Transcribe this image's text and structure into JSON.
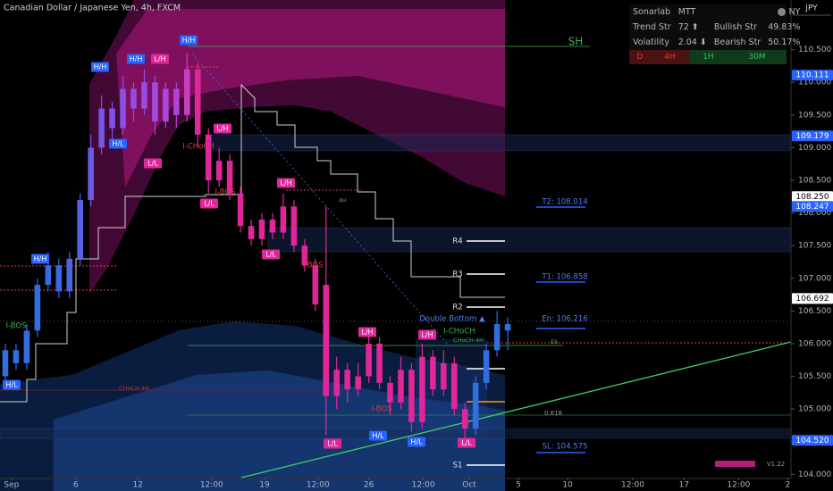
{
  "chart_data": {
    "type": "candlestick",
    "title": "Canadian Dollar / Japanese Yen, 4h, FXCM",
    "currency": "JPY",
    "xlim": [
      -0.5,
      73.5
    ],
    "ylim": [
      103.95,
      111.26
    ],
    "xticks": [
      {
        "value": 0.58,
        "label": "Sep"
      },
      {
        "value": 6.6,
        "label": "6"
      },
      {
        "value": 12.4,
        "label": "12"
      },
      {
        "value": 19.3,
        "label": "12:00"
      },
      {
        "value": 24.25,
        "label": "19"
      },
      {
        "value": 29.25,
        "label": "12:00"
      },
      {
        "value": 34,
        "label": "26"
      },
      {
        "value": 39.1,
        "label": "12:00"
      },
      {
        "value": 43.4,
        "label": "Oct"
      },
      {
        "value": 48,
        "label": "5"
      },
      {
        "value": 52.6,
        "label": "10"
      },
      {
        "value": 58.7,
        "label": "12:00"
      },
      {
        "value": 63.5,
        "label": "17"
      },
      {
        "value": 68.6,
        "label": "12:00"
      },
      {
        "value": 73.2,
        "label": "2"
      }
    ],
    "yticks": [
      {
        "value": 104,
        "label": "104.000"
      },
      {
        "value": 104.5,
        "label": "104.500"
      },
      {
        "value": 105,
        "label": "105.000"
      },
      {
        "value": 105.5,
        "label": "105.500"
      },
      {
        "value": 106,
        "label": "106.000"
      },
      {
        "value": 106.5,
        "label": "106.500"
      },
      {
        "value": 107,
        "label": "107.000"
      },
      {
        "value": 107.5,
        "label": "107.500"
      },
      {
        "value": 108,
        "label": "108.000"
      },
      {
        "value": 108.5,
        "label": "108.500"
      },
      {
        "value": 109,
        "label": "109.000"
      },
      {
        "value": 109.5,
        "label": "109.500"
      },
      {
        "value": 110,
        "label": "110.000"
      },
      {
        "value": 110.5,
        "label": "110.500"
      }
    ],
    "price_tags": [
      {
        "value": 110.111,
        "label": "110.111",
        "color": "#2962ff"
      },
      {
        "value": 109.179,
        "label": "109.179",
        "color": "#2962ff"
      },
      {
        "value": 108.25,
        "label": "108.250",
        "color": "#ffffff"
      },
      {
        "value": 108.247,
        "label": "108.247",
        "color": "#2962ff"
      },
      {
        "value": 106.692,
        "label": "106.692",
        "color": "#ffffff"
      },
      {
        "value": 104.52,
        "label": "104.520",
        "color": "#2962ff"
      }
    ],
    "candles": [
      {
        "o": 105.5,
        "h": 106.0,
        "l": 105.4,
        "c": 105.9,
        "color": "#2f6fde"
      },
      {
        "o": 105.9,
        "h": 106.0,
        "l": 105.6,
        "c": 105.7,
        "color": "#2f6fde"
      },
      {
        "o": 105.7,
        "h": 106.3,
        "l": 105.6,
        "c": 106.2,
        "color": "#2f6fde"
      },
      {
        "o": 106.2,
        "h": 107.0,
        "l": 106.1,
        "c": 106.9,
        "color": "#2f6fde"
      },
      {
        "o": 106.9,
        "h": 107.4,
        "l": 106.8,
        "c": 107.2,
        "color": "#3a6ae0"
      },
      {
        "o": 107.2,
        "h": 107.3,
        "l": 106.7,
        "c": 106.8,
        "color": "#3a6ae0"
      },
      {
        "o": 106.8,
        "h": 107.4,
        "l": 106.7,
        "c": 107.3,
        "color": "#4a64e2"
      },
      {
        "o": 107.3,
        "h": 108.3,
        "l": 107.2,
        "c": 108.2,
        "color": "#5a5fe4"
      },
      {
        "o": 108.2,
        "h": 109.2,
        "l": 108.1,
        "c": 109.0,
        "color": "#6a5ae6"
      },
      {
        "o": 109.0,
        "h": 109.8,
        "l": 108.9,
        "c": 109.6,
        "color": "#7656e6"
      },
      {
        "o": 109.6,
        "h": 109.7,
        "l": 109.1,
        "c": 109.3,
        "color": "#8052e6"
      },
      {
        "o": 109.3,
        "h": 110.1,
        "l": 109.2,
        "c": 109.9,
        "color": "#8a50e4"
      },
      {
        "o": 109.9,
        "h": 110.0,
        "l": 109.4,
        "c": 109.6,
        "color": "#924ee2"
      },
      {
        "o": 109.6,
        "h": 110.2,
        "l": 109.5,
        "c": 110.0,
        "color": "#994ce0"
      },
      {
        "o": 110.0,
        "h": 110.1,
        "l": 109.2,
        "c": 109.4,
        "color": "#a04ade"
      },
      {
        "o": 109.4,
        "h": 110.0,
        "l": 109.3,
        "c": 109.9,
        "color": "#a848dc"
      },
      {
        "o": 109.9,
        "h": 110.0,
        "l": 109.3,
        "c": 109.5,
        "color": "#b044d6"
      },
      {
        "o": 109.5,
        "h": 110.45,
        "l": 109.4,
        "c": 110.2,
        "color": "#c83ec0"
      },
      {
        "o": 110.2,
        "h": 110.3,
        "l": 109.0,
        "c": 109.2,
        "color": "#e0279a"
      },
      {
        "o": 109.2,
        "h": 109.3,
        "l": 108.3,
        "c": 108.5,
        "color": "#e0279a"
      },
      {
        "o": 108.5,
        "h": 109.0,
        "l": 108.4,
        "c": 108.8,
        "color": "#e0279a"
      },
      {
        "o": 108.8,
        "h": 108.9,
        "l": 108.2,
        "c": 108.3,
        "color": "#e0279a"
      },
      {
        "o": 108.3,
        "h": 108.4,
        "l": 107.7,
        "c": 107.8,
        "color": "#e0279a"
      },
      {
        "o": 107.8,
        "h": 107.9,
        "l": 107.5,
        "c": 107.6,
        "color": "#e0279a"
      },
      {
        "o": 107.6,
        "h": 108.0,
        "l": 107.5,
        "c": 107.9,
        "color": "#e0279a"
      },
      {
        "o": 107.9,
        "h": 108.0,
        "l": 107.6,
        "c": 107.7,
        "color": "#e0279a"
      },
      {
        "o": 107.7,
        "h": 108.3,
        "l": 107.6,
        "c": 108.1,
        "color": "#e0279a"
      },
      {
        "o": 108.1,
        "h": 108.2,
        "l": 107.4,
        "c": 107.5,
        "color": "#e0279a"
      },
      {
        "o": 107.5,
        "h": 107.6,
        "l": 107.1,
        "c": 107.2,
        "color": "#e0279a"
      },
      {
        "o": 107.2,
        "h": 107.3,
        "l": 106.5,
        "c": 106.6,
        "color": "#e0279a"
      },
      {
        "o": 106.9,
        "h": 108.1,
        "l": 104.6,
        "c": 105.2,
        "color": "#e0279a"
      },
      {
        "o": 105.2,
        "h": 105.8,
        "l": 105.0,
        "c": 105.6,
        "color": "#e0279a"
      },
      {
        "o": 105.6,
        "h": 105.7,
        "l": 105.1,
        "c": 105.3,
        "color": "#e0279a"
      },
      {
        "o": 105.3,
        "h": 105.7,
        "l": 105.2,
        "c": 105.5,
        "color": "#e0279a"
      },
      {
        "o": 105.5,
        "h": 106.2,
        "l": 105.4,
        "c": 106.0,
        "color": "#e0279a"
      },
      {
        "o": 106.0,
        "h": 106.1,
        "l": 105.3,
        "c": 105.4,
        "color": "#e0279a"
      },
      {
        "o": 105.4,
        "h": 105.5,
        "l": 104.9,
        "c": 105.1,
        "color": "#e0279a"
      },
      {
        "o": 105.1,
        "h": 105.8,
        "l": 105.0,
        "c": 105.6,
        "color": "#e0279a"
      },
      {
        "o": 105.6,
        "h": 105.7,
        "l": 104.65,
        "c": 104.8,
        "color": "#e0279a"
      },
      {
        "o": 104.8,
        "h": 106.0,
        "l": 104.7,
        "c": 105.8,
        "color": "#e0279a"
      },
      {
        "o": 105.8,
        "h": 105.9,
        "l": 105.2,
        "c": 105.3,
        "color": "#e0279a"
      },
      {
        "o": 105.3,
        "h": 105.9,
        "l": 105.2,
        "c": 105.7,
        "color": "#e0279a"
      },
      {
        "o": 105.7,
        "h": 105.8,
        "l": 104.9,
        "c": 105.0,
        "color": "#e0279a"
      },
      {
        "o": 105.0,
        "h": 105.1,
        "l": 104.55,
        "c": 104.7,
        "color": "#e0279a"
      },
      {
        "o": 104.7,
        "h": 105.5,
        "l": 104.6,
        "c": 105.4,
        "color": "#2f6fde"
      },
      {
        "o": 105.4,
        "h": 106.0,
        "l": 105.3,
        "c": 105.9,
        "color": "#2f6fde"
      },
      {
        "o": 105.9,
        "h": 106.5,
        "l": 105.8,
        "c": 106.3,
        "color": "#2f6fde"
      },
      {
        "o": 106.3,
        "h": 106.4,
        "l": 105.9,
        "c": 106.2,
        "color": "#2f6fde"
      }
    ],
    "annotations": [
      {
        "text": "H/H",
        "style": "blue-box"
      },
      {
        "text": "H/H",
        "style": "blue-box"
      },
      {
        "text": "L/H",
        "style": "pink-box"
      },
      {
        "text": "H/H",
        "style": "blue-box"
      },
      {
        "text": "H/L",
        "style": "blue-box"
      },
      {
        "text": "L/L",
        "style": "pink-box"
      },
      {
        "text": "L/H",
        "style": "pink-box"
      },
      {
        "text": "I-CHoCH",
        "style": "red"
      },
      {
        "text": "I-BOS",
        "style": "red"
      },
      {
        "text": "L/H",
        "style": "pink-box"
      },
      {
        "text": "L/L",
        "style": "pink-box"
      },
      {
        "text": "L/L",
        "style": "pink-box"
      },
      {
        "text": "H/H",
        "style": "blue-box"
      },
      {
        "text": "I-BOS",
        "style": "green"
      },
      {
        "text": "H/L",
        "style": "blue-box"
      },
      {
        "text": "I-BOS",
        "style": "red"
      },
      {
        "text": "L/H",
        "style": "pink-box"
      },
      {
        "text": "L/H",
        "style": "pink-box"
      },
      {
        "text": "I-BOS",
        "style": "red"
      },
      {
        "text": "L/L",
        "style": "pink-box"
      },
      {
        "text": "H/L",
        "style": "blue-box"
      },
      {
        "text": "H/L",
        "style": "blue-box"
      },
      {
        "text": "L/L",
        "style": "pink-box"
      },
      {
        "text": "I-CHoCH",
        "style": "green"
      },
      {
        "text": "CHoCH 4H",
        "style": "green-small"
      },
      {
        "text": "Double Bottom ▲",
        "style": "blue"
      },
      {
        "text": "SH",
        "style": "green-big"
      },
      {
        "text": "R4",
        "style": "white"
      },
      {
        "text": "R3",
        "style": "white"
      },
      {
        "text": "R2",
        "style": "white"
      },
      {
        "text": "S1",
        "style": "white"
      },
      {
        "text": "T2: 108.014",
        "style": "blue"
      },
      {
        "text": "T1: 106.858",
        "style": "blue"
      },
      {
        "text": "En: 106.216",
        "style": "blue"
      },
      {
        "text": "SL: 104.575",
        "style": "blue"
      },
      {
        "text": "0.618",
        "style": "gray"
      },
      {
        "text": "CHoCH 4H",
        "style": "red-small"
      },
      {
        "text": "V1.22",
        "style": "gray"
      },
      {
        "text": "4H",
        "style": "gray-small"
      },
      {
        "text": "ES",
        "style": "green-small"
      }
    ]
  },
  "panel": {
    "brand": "Sonarlab",
    "mode": "MTT",
    "session": "NY",
    "rows": [
      [
        "Trend Str",
        "72 ⬆",
        "Bullish Str",
        "49.83%"
      ],
      [
        "Volatility",
        "2.04 ⬇",
        "Bearish Str",
        "50.17%"
      ]
    ],
    "timeframes": [
      "D",
      "4H",
      "1H",
      "30M"
    ],
    "timeframe_colors": [
      "#4a1212",
      "#4a1212",
      "#113a1c",
      "#113a1c"
    ],
    "timeframe_text_colors": [
      "#e03b3b",
      "#e03b3b",
      "#2fbf5a",
      "#2fbf5a"
    ]
  }
}
